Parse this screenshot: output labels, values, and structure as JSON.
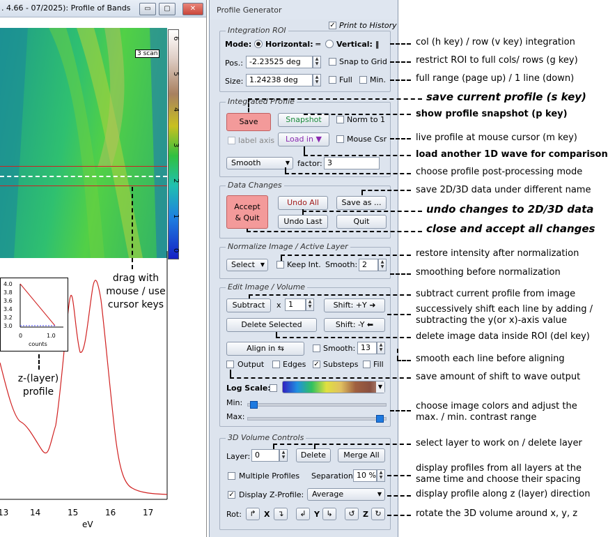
{
  "left_window": {
    "title": ". 4.66 - 07/2025): Profile of Bands",
    "min_btn": "▭",
    "max_btn": "▢",
    "close_btn": "✕",
    "scan_label": "3 scan",
    "colorbar_ticks": [
      "6",
      "5",
      "4",
      "3",
      "2",
      "1",
      "0"
    ],
    "inset": {
      "yticks": [
        "4.0",
        "3.8",
        "3.6",
        "3.4",
        "3.2",
        "3.0"
      ],
      "xticks": [
        "0",
        "1.0"
      ],
      "xlabel": "counts"
    },
    "drag_label": [
      "drag with",
      "mouse / use",
      "cursor keys"
    ],
    "zlayer_label": [
      "z-(layer)",
      "profile"
    ],
    "xaxis": {
      "ticks": [
        "13",
        "14",
        "15",
        "16",
        "17"
      ],
      "label": "eV"
    }
  },
  "panel": {
    "title": "Profile Generator",
    "print_history": {
      "label": "Print to History",
      "checked": "✓"
    },
    "roi": {
      "title": "Integration ROI",
      "mode_label": "Mode:",
      "horizontal": "Horizontal: ═",
      "vertical": "Vertical: ‖",
      "pos_label": "Pos.:",
      "pos_value": "-2.23525 deg",
      "snap": "Snap to Grid",
      "size_label": "Size:",
      "size_value": "1.24238 deg",
      "full": "Full",
      "min": "Min."
    },
    "integrated": {
      "title": "Integrated Profile",
      "save": "Save",
      "snapshot": "Snapshot",
      "norm": "Norm to 1",
      "label_axis": "label axis",
      "load_in": "Load in",
      "load_arrow": "▼",
      "mouse_csr": "Mouse Csr",
      "smooth": "Smooth",
      "factor_label": "factor:",
      "factor_value": "3"
    },
    "data_changes": {
      "title": "Data Changes",
      "accept": [
        "Accept",
        "& Quit"
      ],
      "undo_all": "Undo All",
      "save_as": "Save as ...",
      "undo_last": "Undo Last",
      "quit": "Quit"
    },
    "normalize": {
      "title": "Normalize Image / Active Layer",
      "select": "Select",
      "keep_int": "Keep Int.",
      "smooth_label": "Smooth:",
      "smooth_value": "2"
    },
    "edit": {
      "title": "Edit Image / Volume",
      "subtract": "Subtract",
      "x_label": "x",
      "x_value": "1",
      "shift_plus": "Shift: +Y ➜",
      "delete_selected": "Delete Selected",
      "shift_minus": "Shift: -Y ⬅",
      "align": "Align in ⇆",
      "smooth_label": "Smooth:",
      "smooth_value": "13",
      "output": "Output",
      "edges": "Edges",
      "substeps": "Substeps",
      "fill": "Fill",
      "log_scale": "Log Scale:",
      "min_label": "Min:",
      "max_label": "Max:",
      "min_level": 0.02,
      "max_level": 0.98
    },
    "volume": {
      "title": "3D Volume Controls",
      "layer_label": "Layer:",
      "layer_value": "0",
      "delete": "Delete",
      "merge_all": "Merge All",
      "multiple_profiles": "Multiple Profiles",
      "separation_label": "Separation:",
      "separation_value": "10 %",
      "display_z": "Display Z-Profile:",
      "z_mode": "Average",
      "rot_label": "Rot:",
      "x": "X",
      "y": "Y",
      "z": "Z"
    }
  },
  "annotations": {
    "a1": "col (h key) / row (v key) integration",
    "a2": "restrict ROI to full cols/ rows (g key)",
    "a3": "full range (page up) / 1 line (down)",
    "a4": "save current profile (s key)",
    "a5": "show profile snapshot (p key)",
    "a6": "live profile at mouse cursor (m key)",
    "a7": "load another 1D wave for comparison",
    "a8": "choose profile post-processing mode",
    "a9": "save 2D/3D data under different name",
    "a10": "undo changes to 2D/3D data",
    "a11": "close and accept all changes",
    "a12": "restore intensity after normalization",
    "a13": "smoothing before normalization",
    "a14": "subtract current profile from image",
    "a15": [
      "successively shift each line by adding /",
      "subtracting the y(or x)-axis value"
    ],
    "a16": "delete image data inside ROI (del key)",
    "a17": "smooth each line before aligning",
    "a18": "save amount of shift to wave output",
    "a19": [
      "choose image colors and adjust the",
      "max. / min. contrast range"
    ],
    "a20": "select layer to work on / delete layer",
    "a21": [
      "display profiles from all layers at the",
      "same time and choose their spacing"
    ],
    "a22": "display profile along z (layer) direction",
    "a23": "rotate the 3D volume around x, y, z"
  }
}
